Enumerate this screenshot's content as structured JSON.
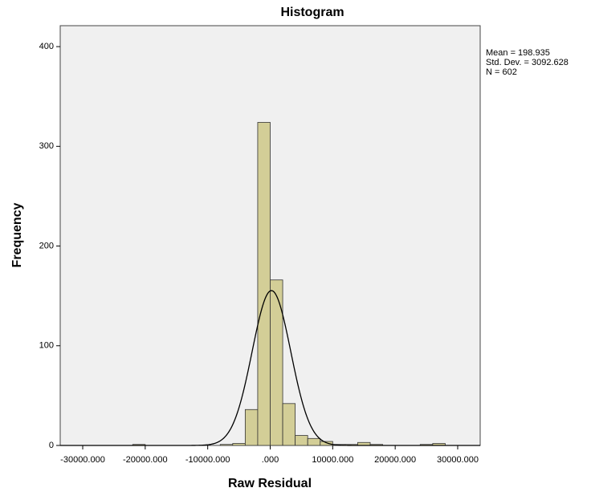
{
  "chart_data": {
    "type": "histogram",
    "title": "Histogram",
    "x_label": "Raw Residual",
    "y_label": "Frequency",
    "bins": [
      -22000,
      -20000,
      -18000,
      -16000,
      -14000,
      -12000,
      -10000,
      -8000,
      -6000,
      -4000,
      -2000,
      0,
      2000,
      4000,
      6000,
      8000,
      10000,
      12000,
      14000,
      16000,
      18000,
      20000,
      22000,
      24000,
      26000,
      28000,
      30000
    ],
    "counts": [
      1,
      0,
      0,
      0,
      0,
      0,
      0,
      1,
      2,
      36,
      324,
      166,
      42,
      10,
      7,
      4,
      1,
      1,
      3,
      1,
      0,
      0,
      0,
      1,
      2,
      0
    ],
    "color": "#d3ce97",
    "xlim": [
      -33600,
      33600
    ],
    "ylim": [
      0,
      421
    ],
    "xticks": [
      {
        "value": -30000,
        "label": "-30000.000"
      },
      {
        "value": -20000,
        "label": "-20000.000"
      },
      {
        "value": -10000,
        "label": "-10000.000"
      },
      {
        "value": 0,
        "label": ".000"
      },
      {
        "value": 10000,
        "label": "10000.000"
      },
      {
        "value": 20000,
        "label": "20000.000"
      },
      {
        "value": 30000,
        "label": "30000.000"
      }
    ],
    "yticks": [
      0,
      100,
      200,
      300,
      400
    ],
    "stats": [
      {
        "value": 198.935,
        "label": "Mean = 198.935"
      },
      {
        "value": 3092.628,
        "label": "Std. Dev. = 3092.628"
      },
      {
        "value": 602,
        "label": "N = 602"
      }
    ]
  }
}
